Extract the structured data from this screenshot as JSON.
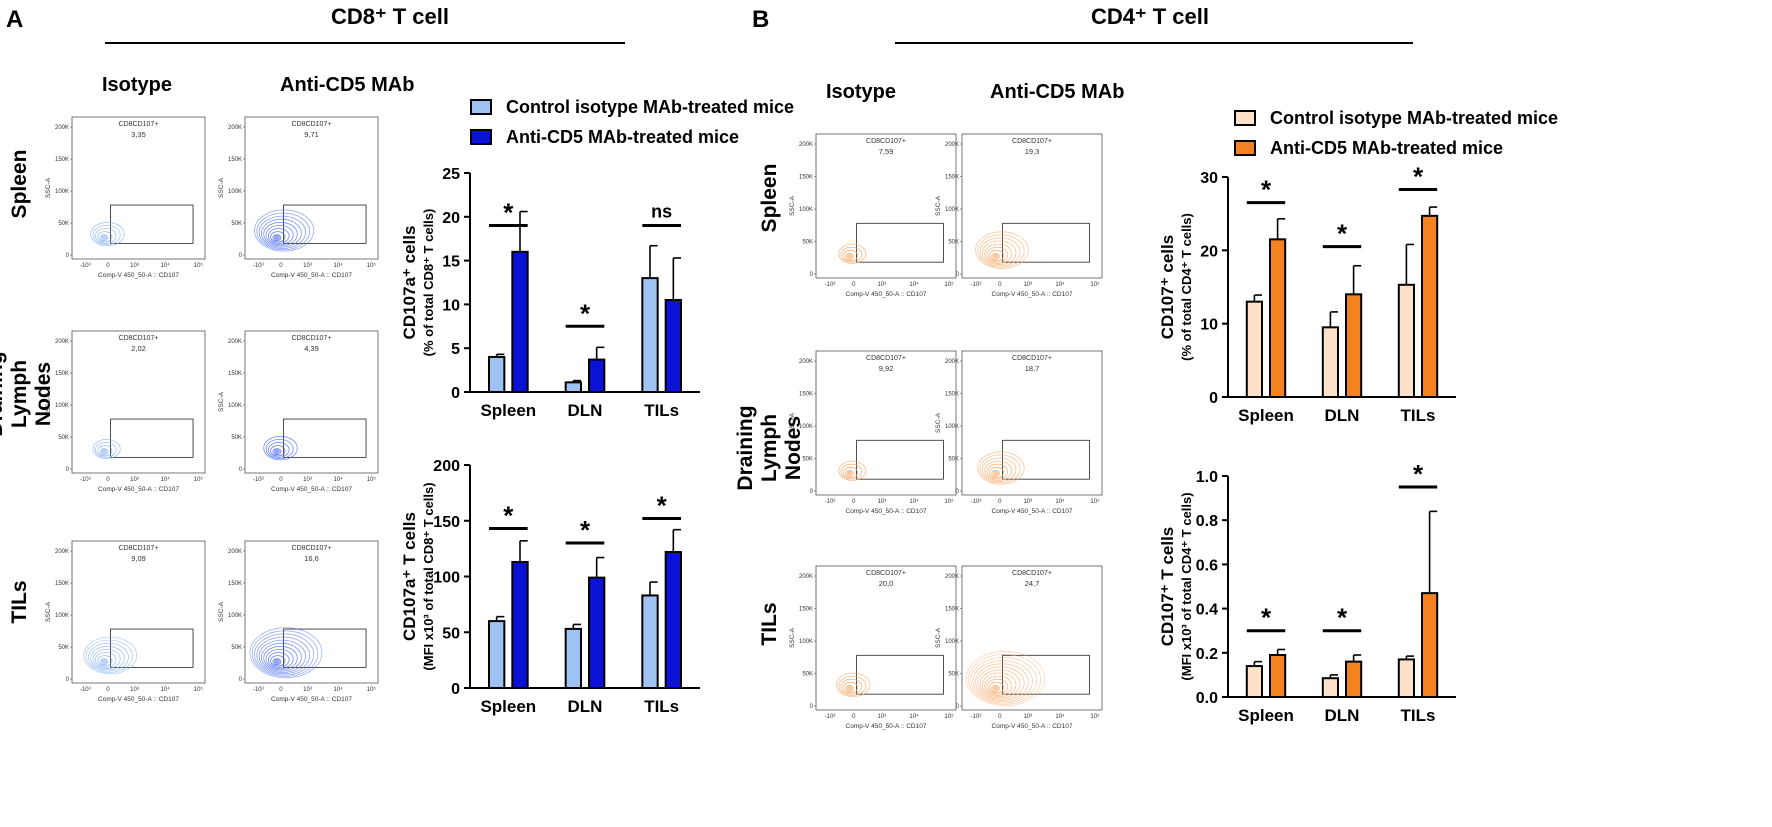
{
  "panels": {
    "a": {
      "letter": "A",
      "title": "CD8⁺ T cell",
      "col1": "Isotype",
      "col2": "Anti-CD5 MAb",
      "rows": [
        "Spleen",
        "Draining Lymph Nodes",
        "TILs"
      ]
    },
    "b": {
      "letter": "B",
      "title": "CD4⁺ T cell",
      "col1": "Isotype",
      "col2": "Anti-CD5 MAb",
      "rows": [
        "Spleen",
        "Draining Lymph Nodes",
        "TILs"
      ]
    }
  },
  "legend": {
    "a": {
      "control": "Control isotype MAb-treated mice",
      "anti": "Anti-CD5 MAb-treated mice"
    },
    "b": {
      "control": "Control isotype MAb-treated mice",
      "anti": "Anti-CD5 MAb-treated mice"
    }
  },
  "colors": {
    "a_control": "#9ec3f2",
    "a_anti": "#0a12d8",
    "b_control": "#fde2c9",
    "b_anti": "#f58220",
    "a_flow": "#4a6cf0",
    "a_flow_light": "#8ab4ee",
    "b_flow": "#f5a868"
  },
  "flow": {
    "x_label": "Comp-V 450_50-A :: CD107",
    "y_label": "SSC-A",
    "gate_name": "CD8CD107+",
    "y_ticks": [
      "0",
      "50K",
      "100K",
      "150K",
      "200K"
    ],
    "x_ticks": [
      "-10³",
      "0",
      "10³",
      "10⁴",
      "10⁵"
    ],
    "a_values": [
      [
        "3,35",
        "9,71"
      ],
      [
        "2,02",
        "4,39"
      ],
      [
        "9,09",
        "16,6"
      ]
    ],
    "b_values": [
      [
        "7,59",
        "19,3"
      ],
      [
        "9,92",
        "18,7"
      ],
      [
        "20,0",
        "24,7"
      ]
    ]
  },
  "chart_data": [
    {
      "type": "bar",
      "panel": "A-top",
      "categories": [
        "Spleen",
        "DLN",
        "TILs"
      ],
      "ylabel_line1": "CD107a⁺ cells",
      "ylabel_line2": "(% of total CD8⁺ T cells)",
      "ylim": [
        0,
        25
      ],
      "yticks": [
        0,
        5,
        10,
        15,
        20,
        25
      ],
      "series": [
        {
          "name": "Control isotype MAb-treated mice",
          "values": [
            4.0,
            1.1,
            13.0
          ],
          "errors": [
            0.3,
            0.2,
            3.7
          ]
        },
        {
          "name": "Anti-CD5 MAb-treated mice",
          "values": [
            16.0,
            3.7,
            10.5
          ],
          "errors": [
            4.6,
            1.4,
            4.8
          ]
        }
      ],
      "significance": [
        "*",
        "*",
        "ns"
      ],
      "sig_levels": [
        19,
        7.5,
        19
      ]
    },
    {
      "type": "bar",
      "panel": "A-bottom",
      "categories": [
        "Spleen",
        "DLN",
        "TILs"
      ],
      "ylabel_line1": "CD107a⁺ T cells",
      "ylabel_line2": "(MFI x10³ of total CD8⁺ T cells)",
      "ylim": [
        0,
        200
      ],
      "yticks": [
        0,
        50,
        100,
        150,
        200
      ],
      "series": [
        {
          "name": "Control isotype MAb-treated mice",
          "values": [
            60,
            53,
            83
          ],
          "errors": [
            4,
            4,
            12
          ]
        },
        {
          "name": "Anti-CD5 MAb-treated mice",
          "values": [
            113,
            99,
            122
          ],
          "errors": [
            19,
            18,
            20
          ]
        }
      ],
      "significance": [
        "*",
        "*",
        "*"
      ],
      "sig_levels": [
        143,
        130,
        152
      ]
    },
    {
      "type": "bar",
      "panel": "B-top",
      "categories": [
        "Spleen",
        "DLN",
        "TILs"
      ],
      "ylabel_line1": "CD107⁺ cells",
      "ylabel_line2": "(% of total CD4⁺ T cells)",
      "ylim": [
        0,
        30
      ],
      "yticks": [
        0,
        10,
        20,
        30
      ],
      "series": [
        {
          "name": "Control isotype MAb-treated mice",
          "values": [
            13.0,
            9.5,
            15.3
          ],
          "errors": [
            0.9,
            2.1,
            5.5
          ]
        },
        {
          "name": "Anti-CD5 MAb-treated mice",
          "values": [
            21.5,
            14.0,
            24.7
          ],
          "errors": [
            2.8,
            3.9,
            1.2
          ]
        }
      ],
      "significance": [
        "*",
        "*",
        "*"
      ],
      "sig_levels": [
        26.5,
        20.5,
        28.3
      ]
    },
    {
      "type": "bar",
      "panel": "B-bottom",
      "categories": [
        "Spleen",
        "DLN",
        "TILs"
      ],
      "ylabel_line1": "CD107⁺ T cells",
      "ylabel_line2": "(MFI x10³ of total CD4⁺ T cells)",
      "ylim": [
        0,
        1.0
      ],
      "yticks": [
        "0.0",
        "0.2",
        "0.4",
        "0.6",
        "0.8",
        "1.0"
      ],
      "series": [
        {
          "name": "Control isotype MAb-treated mice",
          "values": [
            0.14,
            0.085,
            0.17
          ],
          "errors": [
            0.02,
            0.015,
            0.015
          ]
        },
        {
          "name": "Anti-CD5 MAb-treated mice",
          "values": [
            0.19,
            0.16,
            0.47
          ],
          "errors": [
            0.025,
            0.03,
            0.37
          ]
        }
      ],
      "significance": [
        "*",
        "*",
        "*"
      ],
      "sig_levels": [
        0.3,
        0.3,
        0.95
      ]
    }
  ]
}
